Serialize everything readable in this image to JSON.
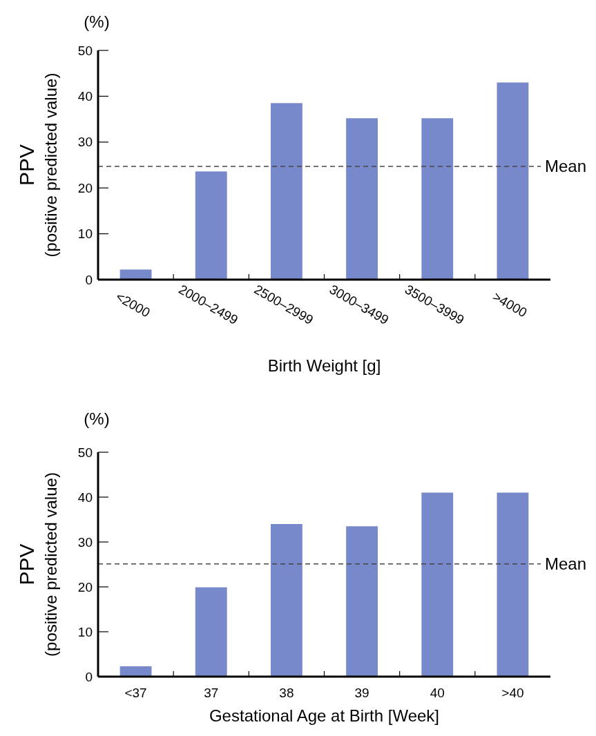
{
  "chart_data": [
    {
      "type": "bar",
      "xlabel": "Birth Weight [g]",
      "ylabel": "PPV\n(positive predicted value)",
      "annotations": [
        "(%)"
      ],
      "categories": [
        "<2000",
        "2000–2499",
        "2500–2999",
        "3000–3499",
        "3500–3999",
        ">4000"
      ],
      "values": [
        2.2,
        23.6,
        38.5,
        35.2,
        35.2,
        43.0
      ],
      "color": "#7889cb",
      "ylim": [
        0,
        50
      ],
      "yticks": [
        0,
        10,
        20,
        30,
        40,
        50
      ],
      "ref_lines": [
        {
          "axis": "y",
          "value": 24.7,
          "label": "Mean",
          "color": "#444444",
          "line_style": "dashed"
        }
      ]
    },
    {
      "type": "bar",
      "xlabel": "Gestational Age at Birth [Week]",
      "ylabel": "PPV\n(positive predicted value)",
      "annotations": [
        "(%)"
      ],
      "categories": [
        "<37",
        "37",
        "38",
        "39",
        "40",
        ">40"
      ],
      "values": [
        2.3,
        19.9,
        34.0,
        33.5,
        41.0,
        41.0
      ],
      "color": "#7889cb",
      "ylim": [
        0,
        50
      ],
      "yticks": [
        0,
        10,
        20,
        30,
        40,
        50
      ],
      "ref_lines": [
        {
          "axis": "y",
          "value": 25.1,
          "label": "Mean",
          "color": "#444444",
          "line_style": "dashed"
        }
      ]
    }
  ]
}
